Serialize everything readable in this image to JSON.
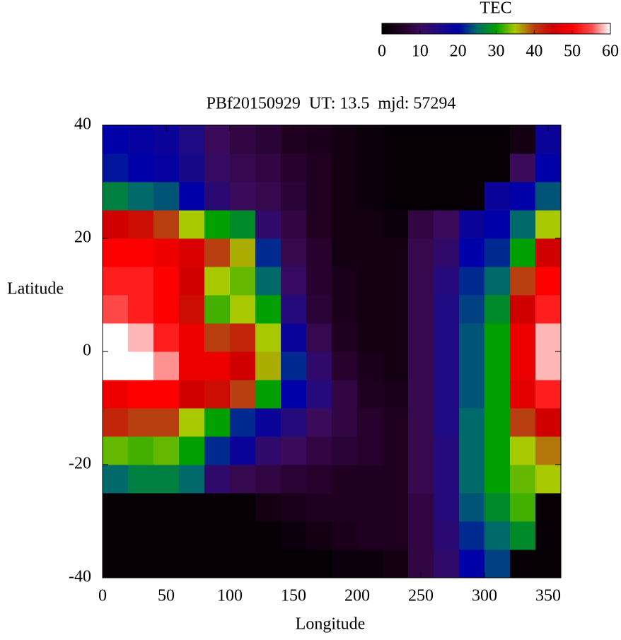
{
  "chart_data": {
    "type": "heatmap",
    "title": "PBf20150929  UT: 13.5  mjd: 57294",
    "x_label": "Longitude",
    "y_label": "Latitude",
    "xlim": [
      0,
      360
    ],
    "ylim": [
      -40,
      40
    ],
    "xticks": [
      0,
      50,
      100,
      150,
      200,
      250,
      300,
      350
    ],
    "yticks": [
      -40,
      -20,
      0,
      20,
      40
    ],
    "xbins": [
      0,
      20,
      40,
      60,
      80,
      100,
      120,
      140,
      160,
      180,
      200,
      220,
      240,
      260,
      280,
      300,
      320,
      340,
      360
    ],
    "ybins": [
      -40,
      -35,
      -30,
      -25,
      -20,
      -15,
      -10,
      -5,
      0,
      5,
      10,
      15,
      20,
      25,
      30,
      35,
      40
    ],
    "values": [
      [
        1,
        1,
        1,
        1,
        1,
        1,
        1,
        1,
        1,
        2,
        2,
        3,
        8,
        12,
        20,
        23,
        1,
        1
      ],
      [
        1,
        1,
        1,
        1,
        1,
        1,
        1,
        2,
        3,
        4,
        5,
        5,
        8,
        13,
        22,
        25,
        28,
        1
      ],
      [
        1,
        1,
        1,
        1,
        1,
        1,
        3,
        4,
        5,
        5,
        5,
        5,
        8,
        14,
        24,
        28,
        32,
        1
      ],
      [
        25,
        27,
        27,
        25,
        12,
        9,
        8,
        7,
        6,
        5,
        5,
        5,
        9,
        14,
        25,
        30,
        33,
        35
      ],
      [
        33,
        32,
        33,
        30,
        22,
        18,
        12,
        10,
        8,
        7,
        6,
        5,
        9,
        14,
        25,
        30,
        35,
        38
      ],
      [
        42,
        40,
        40,
        35,
        30,
        22,
        18,
        14,
        10,
        8,
        6,
        5,
        9,
        15,
        25,
        30,
        40,
        45
      ],
      [
        48,
        50,
        50,
        45,
        44,
        40,
        30,
        20,
        14,
        8,
        5,
        4,
        9,
        15,
        24,
        30,
        47,
        52
      ],
      [
        60,
        60,
        57,
        48,
        48,
        45,
        36,
        22,
        12,
        6,
        4,
        3,
        9,
        15,
        24,
        30,
        48,
        58
      ],
      [
        60,
        58,
        52,
        48,
        40,
        42,
        35,
        18,
        9,
        5,
        3,
        3,
        9,
        15,
        24,
        30,
        48,
        58
      ],
      [
        55,
        52,
        50,
        44,
        32,
        35,
        30,
        14,
        7,
        4,
        3,
        3,
        9,
        15,
        23,
        28,
        45,
        52
      ],
      [
        52,
        52,
        50,
        45,
        35,
        33,
        25,
        11,
        6,
        4,
        3,
        3,
        9,
        14,
        22,
        25,
        40,
        50
      ],
      [
        50,
        50,
        48,
        46,
        40,
        36,
        22,
        9,
        6,
        3,
        3,
        3,
        9,
        12,
        20,
        22,
        30,
        45
      ],
      [
        45,
        44,
        40,
        35,
        30,
        28,
        12,
        8,
        5,
        3,
        3,
        2,
        8,
        10,
        18,
        20,
        25,
        35
      ],
      [
        27,
        25,
        24,
        20,
        13,
        10,
        9,
        7,
        5,
        3,
        2,
        1,
        1,
        1,
        1,
        18,
        20,
        24
      ],
      [
        21,
        20,
        19,
        16,
        11,
        9,
        8,
        6,
        5,
        3,
        2,
        1,
        1,
        1,
        1,
        1,
        10,
        20
      ],
      [
        20,
        19,
        18,
        15,
        10,
        8,
        7,
        5,
        4,
        3,
        2,
        1,
        1,
        1,
        1,
        1,
        3,
        18
      ]
    ],
    "colorbar": {
      "label": "TEC",
      "lim": [
        0,
        60
      ],
      "ticks": [
        0,
        10,
        20,
        30,
        40,
        50,
        60
      ],
      "colors": [
        "#000000",
        "#200020",
        "#3c0a5a",
        "#1e0a82",
        "#0000a8",
        "#006a6a",
        "#00a000",
        "#a8c800",
        "#b84010",
        "#d00000",
        "#ff0000",
        "#ff4848",
        "#ffffff"
      ]
    }
  }
}
